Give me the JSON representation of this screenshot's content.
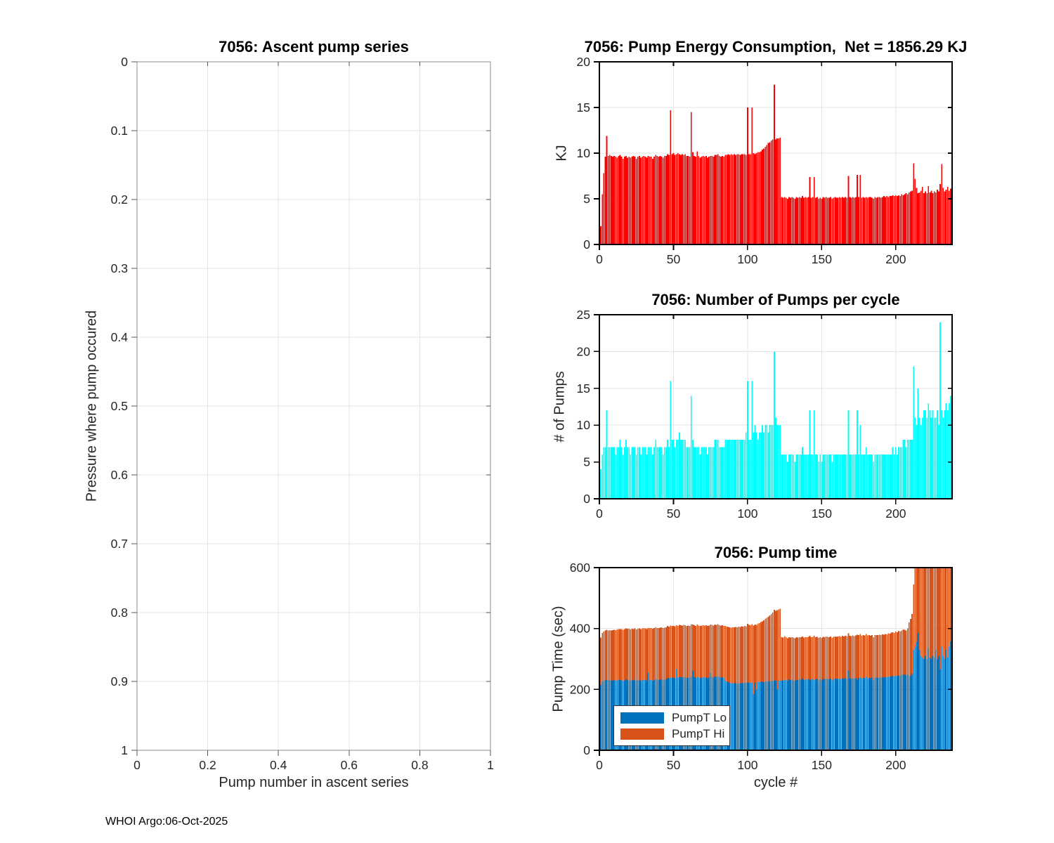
{
  "page": {
    "background": "#ffffff",
    "footer_text": "WHOI Argo:06-Oct-2025"
  },
  "colors": {
    "energy_bar": "#ff0000",
    "pumps_bar": "#00ffff",
    "pump_lo_bar": "#0072bd",
    "pump_hi_bar": "#d95319",
    "grid": "#e4e4e4",
    "axis_right": "#000000",
    "axis_left": "#8c8c8c",
    "tick_text": "#262626"
  },
  "chart_data": [
    {
      "id": "ascent-pump-series",
      "type": "scatter",
      "title": "7056: Ascent pump series",
      "xlabel": "Pump number in ascent series",
      "ylabel": "Pressure where pump occured",
      "xlim": [
        0,
        1
      ],
      "ylim": [
        0,
        1
      ],
      "y_axis_inverted": true,
      "grid": true,
      "xticks": [
        0,
        0.2,
        0.4,
        0.6,
        0.8,
        1
      ],
      "xtick_labels": [
        "0",
        "0.2",
        "0.4",
        "0.6",
        "0.8",
        "1"
      ],
      "yticks": [
        0,
        0.1,
        0.2,
        0.3,
        0.4,
        0.5,
        0.6,
        0.7,
        0.8,
        0.9,
        1
      ],
      "ytick_labels": [
        "0",
        "0.1",
        "0.2",
        "0.3",
        "0.4",
        "0.5",
        "0.6",
        "0.7",
        "0.8",
        "0.9",
        "1"
      ],
      "points": []
    },
    {
      "id": "pump-energy-consumption",
      "type": "bar",
      "title": "7056: Pump Energy Consumption,  Net = 1856.29 KJ",
      "net_kj": 1856.29,
      "ylabel": "KJ",
      "bar_color": "#ff0000",
      "xlim": [
        0,
        238
      ],
      "ylim": [
        0,
        20
      ],
      "grid": true,
      "xticks": [
        0,
        50,
        100,
        150,
        200
      ],
      "xtick_labels": [
        "0",
        "50",
        "100",
        "150",
        "200"
      ],
      "yticks": [
        0,
        5,
        10,
        15,
        20
      ],
      "ytick_labels": [
        "0",
        "5",
        "10",
        "15",
        "20"
      ],
      "first_cycle": 1,
      "values": [
        2.0,
        5.5,
        7.8,
        9.6,
        11.9,
        9.7,
        9.8,
        9.7,
        9.6,
        9.7,
        9.6,
        9.5,
        9.7,
        9.8,
        9.6,
        9.4,
        9.6,
        9.7,
        9.5,
        9.6,
        9.5,
        9.6,
        9.7,
        9.6,
        9.4,
        9.6,
        9.7,
        9.5,
        9.6,
        9.7,
        9.6,
        9.5,
        9.7,
        9.6,
        9.6,
        9.4,
        9.6,
        9.8,
        9.7,
        9.6,
        9.7,
        9.6,
        9.5,
        9.7,
        9.7,
        9.9,
        9.8,
        14.7,
        9.9,
        10.0,
        9.8,
        9.9,
        10.0,
        9.9,
        9.8,
        9.9,
        9.8,
        9.9,
        9.7,
        9.7,
        9.6,
        14.5,
        10.1,
        9.7,
        9.6,
        10.2,
        9.7,
        9.5,
        9.6,
        9.7,
        9.6,
        9.7,
        9.5,
        9.6,
        9.7,
        9.7,
        9.6,
        9.8,
        9.8,
        9.9,
        9.7,
        9.6,
        9.7,
        9.6,
        9.8,
        9.8,
        9.9,
        9.8,
        9.9,
        9.8,
        9.9,
        9.8,
        9.9,
        9.9,
        9.8,
        9.9,
        9.9,
        9.9,
        9.8,
        15.0,
        9.9,
        9.9,
        15.0,
        10.0,
        9.9,
        10.0,
        10.1,
        10.1,
        10.2,
        10.4,
        10.5,
        10.7,
        10.9,
        11.1,
        11.2,
        11.4,
        11.5,
        17.5,
        11.5,
        11.6,
        11.6,
        11.7,
        5.2,
        5.1,
        5.2,
        5.1,
        5.0,
        5.2,
        5.1,
        5.2,
        5.1,
        5.0,
        5.2,
        5.1,
        5.2,
        5.1,
        5.3,
        5.1,
        5.2,
        5.1,
        5.2,
        7.4,
        5.1,
        5.2,
        7.4,
        5.1,
        5.2,
        5.0,
        5.1,
        5.0,
        5.2,
        5.1,
        5.2,
        5.1,
        5.1,
        5.2,
        5.0,
        5.1,
        5.2,
        5.1,
        5.1,
        5.2,
        5.1,
        5.2,
        5.1,
        5.2,
        5.1,
        7.5,
        5.2,
        5.1,
        5.2,
        5.1,
        5.2,
        7.6,
        5.2,
        7.6,
        5.1,
        5.2,
        5.1,
        5.2,
        5.1,
        5.2,
        5.2,
        5.1,
        5.0,
        5.2,
        5.1,
        5.2,
        5.2,
        5.1,
        5.2,
        5.3,
        5.2,
        5.3,
        5.2,
        5.3,
        5.3,
        5.4,
        5.3,
        5.4,
        5.3,
        5.4,
        5.3,
        5.5,
        5.4,
        5.5,
        5.6,
        5.5,
        5.7,
        5.8,
        5.9,
        8.9,
        7.2,
        6.2,
        5.6,
        5.7,
        5.9,
        6.3,
        5.6,
        5.8,
        5.6,
        6.4,
        5.7,
        5.9,
        5.6,
        5.8,
        5.7,
        6.0,
        5.8,
        6.6,
        8.8,
        6.2,
        5.8,
        6.0,
        6.3,
        5.9,
        6.1
      ]
    },
    {
      "id": "pumps-per-cycle",
      "type": "bar",
      "title": "7056: Number of Pumps per cycle",
      "ylabel": "# of Pumps",
      "bar_color": "#00ffff",
      "xlim": [
        0,
        238
      ],
      "ylim": [
        0,
        25
      ],
      "grid": true,
      "xticks": [
        0,
        50,
        100,
        150,
        200
      ],
      "xtick_labels": [
        "0",
        "50",
        "100",
        "150",
        "200"
      ],
      "yticks": [
        0,
        5,
        10,
        15,
        20,
        25
      ],
      "ytick_labels": [
        "0",
        "5",
        "10",
        "15",
        "20",
        "25"
      ],
      "first_cycle": 1,
      "values": [
        4,
        6,
        7,
        7,
        12,
        7,
        7,
        7,
        7,
        7,
        6,
        7,
        7,
        8,
        7,
        6,
        7,
        8,
        7,
        7,
        6,
        7,
        7,
        7,
        6,
        7,
        7,
        6,
        7,
        7,
        7,
        6,
        7,
        7,
        7,
        6,
        7,
        8,
        7,
        7,
        7,
        7,
        6,
        7,
        7,
        8,
        7,
        16,
        8,
        8,
        7,
        8,
        8,
        9,
        8,
        8,
        8,
        8,
        7,
        7,
        7,
        14,
        8,
        7,
        7,
        7,
        7,
        6,
        7,
        7,
        7,
        7,
        6,
        7,
        7,
        7,
        7,
        8,
        8,
        8,
        7,
        7,
        7,
        7,
        8,
        8,
        8,
        8,
        8,
        8,
        8,
        8,
        8,
        8,
        8,
        8,
        8,
        8,
        9,
        16,
        8,
        8,
        16,
        9,
        10,
        9,
        8,
        9,
        9,
        10,
        9,
        10,
        10,
        9,
        10,
        10,
        10,
        20,
        11,
        10,
        10,
        10,
        6,
        6,
        6,
        6,
        5,
        6,
        6,
        6,
        6,
        5,
        6,
        6,
        6,
        6,
        7,
        6,
        6,
        6,
        6,
        12,
        6,
        6,
        12,
        6,
        6,
        5,
        6,
        5,
        6,
        6,
        6,
        6,
        6,
        6,
        5,
        6,
        6,
        6,
        6,
        6,
        6,
        6,
        6,
        6,
        6,
        12,
        6,
        6,
        6,
        6,
        6,
        12,
        6,
        10,
        6,
        6,
        6,
        7,
        6,
        6,
        6,
        6,
        5,
        6,
        6,
        6,
        6,
        6,
        6,
        6,
        6,
        6,
        6,
        6,
        6,
        7,
        6,
        7,
        6,
        7,
        7,
        7,
        8,
        8,
        7,
        8,
        8,
        8,
        8,
        18,
        11,
        10,
        15,
        11,
        10,
        11,
        12,
        12,
        11,
        13,
        12,
        11,
        12,
        11,
        11,
        12,
        10,
        24,
        12,
        11,
        12,
        13,
        12,
        13,
        14
      ]
    },
    {
      "id": "pump-time",
      "type": "stacked-bar",
      "title": "7056: Pump time",
      "xlabel": "cycle #",
      "ylabel": "Pump Time (sec)",
      "xlim": [
        0,
        238
      ],
      "ylim": [
        0,
        600
      ],
      "grid": true,
      "xticks": [
        0,
        50,
        100,
        150,
        200
      ],
      "xtick_labels": [
        "0",
        "50",
        "100",
        "150",
        "200"
      ],
      "yticks": [
        0,
        200,
        400,
        600
      ],
      "ytick_labels": [
        "0",
        "200",
        "400",
        "600"
      ],
      "first_cycle": 1,
      "legend_position": "southwest",
      "series": [
        {
          "name": "PumpT Lo",
          "color": "#0072bd",
          "values": [
            215,
            225,
            228,
            230,
            232,
            230,
            231,
            229,
            230,
            231,
            229,
            230,
            232,
            231,
            230,
            228,
            230,
            233,
            231,
            230,
            229,
            231,
            230,
            232,
            229,
            231,
            230,
            229,
            231,
            232,
            231,
            229,
            255,
            231,
            232,
            229,
            231,
            234,
            232,
            231,
            232,
            233,
            230,
            232,
            233,
            238,
            236,
            240,
            238,
            239,
            237,
            268,
            239,
            241,
            240,
            239,
            241,
            240,
            238,
            239,
            238,
            244,
            262,
            240,
            238,
            242,
            239,
            237,
            239,
            240,
            239,
            240,
            237,
            239,
            255,
            241,
            239,
            242,
            241,
            243,
            240,
            239,
            240,
            238,
            228,
            225,
            224,
            222,
            220,
            221,
            219,
            220,
            218,
            220,
            219,
            221,
            220,
            222,
            220,
            224,
            222,
            221,
            223,
            185,
            222,
            199,
            225,
            224,
            226,
            225,
            224,
            226,
            225,
            227,
            226,
            228,
            227,
            230,
            228,
            200,
            228,
            229,
            228,
            230,
            232,
            231,
            229,
            233,
            231,
            232,
            230,
            228,
            232,
            231,
            233,
            232,
            236,
            231,
            233,
            232,
            234,
            230,
            233,
            234,
            231,
            233,
            234,
            229,
            233,
            230,
            234,
            233,
            235,
            234,
            233,
            235,
            230,
            234,
            235,
            234,
            234,
            235,
            233,
            236,
            234,
            236,
            235,
            262,
            236,
            235,
            237,
            235,
            237,
            232,
            238,
            240,
            236,
            238,
            237,
            242,
            237,
            238,
            236,
            239,
            231,
            238,
            239,
            238,
            240,
            239,
            240,
            239,
            241,
            240,
            242,
            241,
            243,
            245,
            242,
            246,
            243,
            246,
            244,
            247,
            249,
            248,
            246,
            250,
            242,
            246,
            252,
            330,
            340,
            355,
            385,
            330,
            310,
            305,
            300,
            310,
            300,
            335,
            305,
            300,
            310,
            305,
            330,
            300,
            310,
            265,
            340,
            310,
            300,
            330,
            305,
            340,
            358
          ]
        },
        {
          "name": "PumpT Hi",
          "color": "#d95319",
          "values": [
            155,
            160,
            162,
            163,
            164,
            164,
            164,
            165,
            165,
            165,
            166,
            167,
            166,
            167,
            168,
            168,
            168,
            167,
            168,
            169,
            168,
            168,
            168,
            168,
            168,
            168,
            170,
            169,
            169,
            169,
            169,
            169,
            147,
            170,
            170,
            170,
            170,
            170,
            170,
            170,
            171,
            171,
            171,
            171,
            171,
            170,
            170,
            170,
            170,
            170,
            170,
            143,
            170,
            171,
            171,
            171,
            171,
            171,
            171,
            171,
            171,
            170,
            151,
            171,
            171,
            171,
            171,
            171,
            171,
            171,
            171,
            171,
            171,
            171,
            158,
            171,
            171,
            171,
            171,
            171,
            171,
            171,
            171,
            171,
            180,
            181,
            181,
            182,
            183,
            183,
            185,
            185,
            186,
            186,
            186,
            186,
            186,
            186,
            187,
            191,
            190,
            190,
            191,
            225,
            191,
            213,
            191,
            194,
            195,
            199,
            203,
            205,
            210,
            212,
            217,
            220,
            225,
            232,
            230,
            260,
            235,
            236,
            144,
            140,
            143,
            140,
            139,
            138,
            139,
            139,
            140,
            140,
            139,
            139,
            139,
            139,
            138,
            139,
            139,
            139,
            139,
            146,
            139,
            139,
            145,
            139,
            139,
            140,
            139,
            139,
            139,
            139,
            139,
            139,
            139,
            139,
            139,
            139,
            139,
            139,
            140,
            140,
            140,
            140,
            140,
            140,
            140,
            122,
            140,
            140,
            140,
            140,
            140,
            148,
            140,
            142,
            140,
            140,
            140,
            140,
            140,
            140,
            140,
            140,
            140,
            140,
            140,
            140,
            140,
            140,
            141,
            141,
            141,
            141,
            142,
            142,
            143,
            143,
            143,
            144,
            145,
            146,
            146,
            147,
            148,
            148,
            148,
            150,
            178,
            186,
            196,
            215,
            260,
            245,
            215,
            270,
            290,
            295,
            300,
            290,
            300,
            265,
            295,
            300,
            290,
            295,
            270,
            300,
            290,
            335,
            260,
            290,
            300,
            270,
            295,
            260,
            242
          ]
        }
      ]
    }
  ]
}
